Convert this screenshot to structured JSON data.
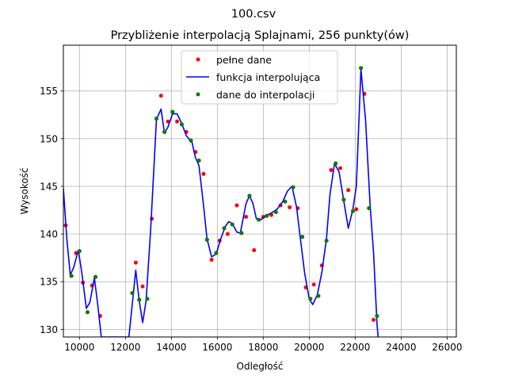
{
  "figure": {
    "suptitle": "100.csv",
    "title": "Przybliżenie interpolacją Splajnami, 256 punkty(ów)"
  },
  "chart_data": {
    "type": "line",
    "title": "Przybliżenie interpolacją Splajnami, 256 punkty(ów)",
    "xlabel": "Odległość",
    "ylabel": "Wysokość",
    "xlim": [
      9300,
      26400
    ],
    "ylim": [
      129.2,
      159.8
    ],
    "xticks": [
      10000,
      12000,
      14000,
      16000,
      18000,
      20000,
      22000,
      24000,
      26000
    ],
    "yticks": [
      130,
      135,
      140,
      145,
      150,
      155
    ],
    "grid": true,
    "legend_position": "top-center",
    "series": [
      {
        "name": "pełne dane",
        "kind": "points",
        "color": "#ff0000",
        "points": [
          [
            9400,
            140.9
          ],
          [
            9650,
            135.6
          ],
          [
            9850,
            138.0
          ],
          [
            10000,
            138.2
          ],
          [
            10150,
            134.9
          ],
          [
            10350,
            131.8
          ],
          [
            10550,
            134.6
          ],
          [
            10700,
            135.5
          ],
          [
            10900,
            131.4
          ],
          [
            12300,
            133.8
          ],
          [
            12450,
            137.0
          ],
          [
            12600,
            133.1
          ],
          [
            12750,
            134.5
          ],
          [
            12950,
            133.2
          ],
          [
            13150,
            141.6
          ],
          [
            13350,
            152.1
          ],
          [
            13550,
            154.5
          ],
          [
            13700,
            150.7
          ],
          [
            13850,
            151.8
          ],
          [
            14050,
            152.8
          ],
          [
            14250,
            151.8
          ],
          [
            14450,
            151.5
          ],
          [
            14650,
            150.7
          ],
          [
            14850,
            149.8
          ],
          [
            15050,
            148.6
          ],
          [
            15200,
            147.7
          ],
          [
            15400,
            146.3
          ],
          [
            15550,
            139.4
          ],
          [
            15750,
            137.3
          ],
          [
            15950,
            138.0
          ],
          [
            16100,
            139.3
          ],
          [
            16300,
            140.6
          ],
          [
            16450,
            140.0
          ],
          [
            16650,
            141.0
          ],
          [
            16850,
            143.0
          ],
          [
            17050,
            140.1
          ],
          [
            17250,
            141.8
          ],
          [
            17400,
            144.0
          ],
          [
            17600,
            138.3
          ],
          [
            17800,
            141.5
          ],
          [
            18000,
            141.8
          ],
          [
            18150,
            141.9
          ],
          [
            18350,
            142.0
          ],
          [
            18550,
            142.3
          ],
          [
            18750,
            143.0
          ],
          [
            18950,
            143.4
          ],
          [
            19150,
            142.8
          ],
          [
            19300,
            144.9
          ],
          [
            19500,
            142.7
          ],
          [
            19700,
            139.7
          ],
          [
            19850,
            134.4
          ],
          [
            20050,
            133.2
          ],
          [
            20200,
            134.7
          ],
          [
            20400,
            133.5
          ],
          [
            20550,
            136.7
          ],
          [
            20750,
            139.3
          ],
          [
            20950,
            146.7
          ],
          [
            21150,
            147.4
          ],
          [
            21350,
            146.9
          ],
          [
            21500,
            143.6
          ],
          [
            21700,
            144.6
          ],
          [
            21900,
            142.4
          ],
          [
            22050,
            142.6
          ],
          [
            22250,
            157.4
          ],
          [
            22400,
            154.7
          ],
          [
            22600,
            142.7
          ],
          [
            22800,
            131.0
          ],
          [
            22950,
            131.4
          ]
        ]
      },
      {
        "name": "funkcja interpolująca",
        "kind": "line",
        "color": "#0000ff",
        "points": [
          [
            9300,
            144.8
          ],
          [
            9450,
            139.5
          ],
          [
            9600,
            135.7
          ],
          [
            9750,
            136.5
          ],
          [
            9950,
            138.3
          ],
          [
            10100,
            136.0
          ],
          [
            10300,
            132.2
          ],
          [
            10450,
            132.8
          ],
          [
            10650,
            135.4
          ],
          [
            10800,
            132.5
          ],
          [
            10950,
            129.2
          ],
          [
            12150,
            129.2
          ],
          [
            12250,
            131.5
          ],
          [
            12450,
            136.2
          ],
          [
            12600,
            133.0
          ],
          [
            12750,
            130.7
          ],
          [
            12900,
            133.0
          ],
          [
            13100,
            140.5
          ],
          [
            13350,
            152.0
          ],
          [
            13550,
            153.1
          ],
          [
            13700,
            150.6
          ],
          [
            13850,
            151.2
          ],
          [
            14050,
            152.6
          ],
          [
            14250,
            152.6
          ],
          [
            14450,
            151.6
          ],
          [
            14650,
            150.3
          ],
          [
            14900,
            149.6
          ],
          [
            15050,
            148.0
          ],
          [
            15200,
            147.2
          ],
          [
            15400,
            143.0
          ],
          [
            15550,
            139.5
          ],
          [
            15750,
            137.6
          ],
          [
            15950,
            137.9
          ],
          [
            16150,
            139.5
          ],
          [
            16350,
            140.8
          ],
          [
            16500,
            141.3
          ],
          [
            16650,
            141.1
          ],
          [
            16850,
            140.2
          ],
          [
            17000,
            140.1
          ],
          [
            17250,
            143.2
          ],
          [
            17400,
            144.0
          ],
          [
            17550,
            143.2
          ],
          [
            17700,
            141.6
          ],
          [
            17900,
            141.5
          ],
          [
            18100,
            141.9
          ],
          [
            18350,
            142.2
          ],
          [
            18600,
            142.6
          ],
          [
            18850,
            143.4
          ],
          [
            19050,
            144.5
          ],
          [
            19250,
            145.0
          ],
          [
            19450,
            142.8
          ],
          [
            19600,
            139.8
          ],
          [
            19800,
            135.9
          ],
          [
            20000,
            133.2
          ],
          [
            20150,
            132.6
          ],
          [
            20350,
            133.6
          ],
          [
            20550,
            136.0
          ],
          [
            20750,
            139.5
          ],
          [
            20900,
            144.1
          ],
          [
            21100,
            147.4
          ],
          [
            21300,
            146.5
          ],
          [
            21500,
            143.5
          ],
          [
            21700,
            140.6
          ],
          [
            21900,
            142.6
          ],
          [
            22050,
            145.0
          ],
          [
            22250,
            157.3
          ],
          [
            22450,
            152.0
          ],
          [
            22650,
            143.0
          ],
          [
            22800,
            138.0
          ],
          [
            22950,
            130.5
          ],
          [
            23000,
            129.2
          ]
        ]
      },
      {
        "name": "dane do interpolacji",
        "kind": "points",
        "color": "#008000",
        "points": [
          [
            9650,
            135.6
          ],
          [
            10000,
            138.2
          ],
          [
            10350,
            131.8
          ],
          [
            10700,
            135.5
          ],
          [
            12300,
            133.8
          ],
          [
            12600,
            133.1
          ],
          [
            12950,
            133.2
          ],
          [
            13350,
            152.1
          ],
          [
            13700,
            150.7
          ],
          [
            14050,
            152.8
          ],
          [
            14450,
            151.5
          ],
          [
            14850,
            149.8
          ],
          [
            15200,
            147.7
          ],
          [
            15550,
            139.4
          ],
          [
            15950,
            138.0
          ],
          [
            16300,
            140.6
          ],
          [
            16650,
            141.0
          ],
          [
            17050,
            140.1
          ],
          [
            17400,
            144.0
          ],
          [
            17800,
            141.5
          ],
          [
            18150,
            141.9
          ],
          [
            18550,
            142.3
          ],
          [
            18950,
            143.4
          ],
          [
            19300,
            144.9
          ],
          [
            19700,
            139.7
          ],
          [
            20050,
            133.2
          ],
          [
            20400,
            133.5
          ],
          [
            20750,
            139.3
          ],
          [
            21150,
            147.4
          ],
          [
            21500,
            143.6
          ],
          [
            21900,
            142.4
          ],
          [
            22250,
            157.4
          ],
          [
            22600,
            142.7
          ],
          [
            22950,
            131.4
          ]
        ]
      }
    ]
  }
}
